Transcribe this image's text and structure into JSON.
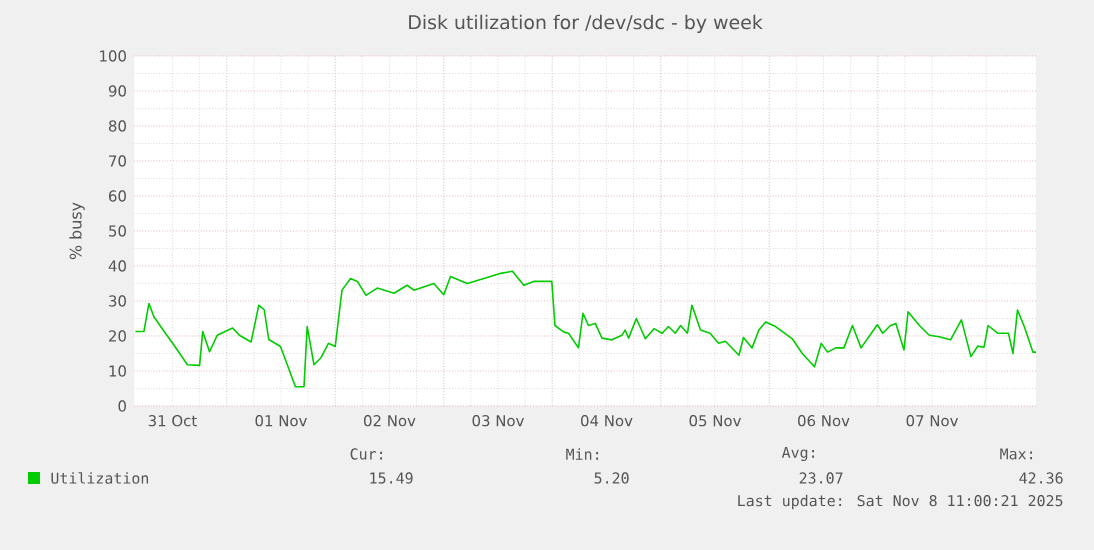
{
  "chart_data": {
    "type": "line",
    "title": "Disk utilization for /dev/sdc - by week",
    "ylabel": "% busy",
    "x": [
      "2025-10-31T03:48",
      "2025-10-31T05:42",
      "2025-10-31T06:48",
      "2025-10-31T07:54",
      "2025-10-31T10:12",
      "2025-10-31T12:24",
      "2025-10-31T15:18",
      "2025-10-31T18:00",
      "2025-10-31T18:42",
      "2025-10-31T20:12",
      "2025-10-31T21:54",
      "2025-11-01T01:18",
      "2025-11-01T02:48",
      "2025-11-01T05:24",
      "2025-11-01T07:06",
      "2025-11-01T08:18",
      "2025-11-01T09:18",
      "2025-11-01T11:54",
      "2025-11-01T13:24",
      "2025-11-01T15:12",
      "2025-11-01T17:06",
      "2025-11-01T17:48",
      "2025-11-01T19:18",
      "2025-11-01T20:48",
      "2025-11-01T22:30",
      "2025-11-02T00:00",
      "2025-11-02T01:30",
      "2025-11-02T03:24",
      "2025-11-02T04:54",
      "2025-11-02T06:48",
      "2025-11-02T09:18",
      "2025-11-02T13:00",
      "2025-11-02T15:54",
      "2025-11-02T17:24",
      "2025-11-02T21:48",
      "2025-11-03T00:00",
      "2025-11-03T01:30",
      "2025-11-03T05:12",
      "2025-11-03T08:54",
      "2025-11-03T12:36",
      "2025-11-03T15:12",
      "2025-11-03T17:42",
      "2025-11-03T19:54",
      "2025-11-03T23:54",
      "2025-11-04T00:36",
      "2025-11-04T02:36",
      "2025-11-04T03:36",
      "2025-11-04T05:48",
      "2025-11-04T06:48",
      "2025-11-04T08:00",
      "2025-11-04T09:30",
      "2025-11-04T11:00",
      "2025-11-04T13:12",
      "2025-11-04T15:24",
      "2025-11-04T16:06",
      "2025-11-04T16:54",
      "2025-11-04T18:36",
      "2025-11-04T20:36",
      "2025-11-04T22:30",
      "2025-11-05T00:18",
      "2025-11-05T01:42",
      "2025-11-05T03:12",
      "2025-11-05T04:24",
      "2025-11-05T05:54",
      "2025-11-05T06:54",
      "2025-11-05T08:48",
      "2025-11-05T10:54",
      "2025-11-05T12:48",
      "2025-11-05T14:18",
      "2025-11-05T17:18",
      "2025-11-05T18:18",
      "2025-11-05T20:12",
      "2025-11-05T21:42",
      "2025-11-05T23:12",
      "2025-11-06T01:24",
      "2025-11-06T05:06",
      "2025-11-06T07:18",
      "2025-11-06T10:00",
      "2025-11-06T11:30",
      "2025-11-06T12:54",
      "2025-11-06T14:42",
      "2025-11-06T16:30",
      "2025-11-06T18:24",
      "2025-11-06T20:18",
      "2025-11-06T23:54",
      "2025-11-07T01:06",
      "2025-11-07T02:48",
      "2025-11-07T04:00",
      "2025-11-07T05:48",
      "2025-11-07T06:42",
      "2025-11-07T09:12",
      "2025-11-07T11:24",
      "2025-11-07T13:36",
      "2025-11-07T16:06",
      "2025-11-07T18:30",
      "2025-11-07T20:36",
      "2025-11-07T22:06",
      "2025-11-07T23:30",
      "2025-11-08T00:24",
      "2025-11-08T02:30",
      "2025-11-08T04:54",
      "2025-11-08T05:54",
      "2025-11-08T06:54",
      "2025-11-08T08:24",
      "2025-11-08T10:18",
      "2025-11-08T11:00"
    ],
    "series": [
      {
        "name": "Utilization",
        "color": "#00cc00",
        "values": [
          21.3,
          21.3,
          29.3,
          25.5,
          21.2,
          17.3,
          11.8,
          11.6,
          21.3,
          15.5,
          20.2,
          22.3,
          20.2,
          18.3,
          28.8,
          27.5,
          19.0,
          17.0,
          11.8,
          5.5,
          5.5,
          22.7,
          11.8,
          13.7,
          17.9,
          17.0,
          33.1,
          36.4,
          35.6,
          31.6,
          33.7,
          32.2,
          34.5,
          33.1,
          35.0,
          31.8,
          37.0,
          35.0,
          36.4,
          37.9,
          38.5,
          34.5,
          35.6,
          35.6,
          23.0,
          21.1,
          20.8,
          16.6,
          26.5,
          23.0,
          23.6,
          19.4,
          18.9,
          20.2,
          21.7,
          19.4,
          25.0,
          19.2,
          22.1,
          20.8,
          22.7,
          20.8,
          23.0,
          20.8,
          28.8,
          21.7,
          20.8,
          17.9,
          18.5,
          14.5,
          19.6,
          16.6,
          21.7,
          24.0,
          22.7,
          19.2,
          15.0,
          11.2,
          17.9,
          15.4,
          16.6,
          16.6,
          23.0,
          16.6,
          23.2,
          20.8,
          23.0,
          23.6,
          16.0,
          26.9,
          23.0,
          20.2,
          19.8,
          18.9,
          24.6,
          14.1,
          17.1,
          16.8,
          23.0,
          20.8,
          20.8,
          15.0,
          27.4,
          22.7,
          15.4,
          15.4
        ]
      }
    ],
    "xlim": [
      "2025-10-31T03:30",
      "2025-11-08T11:00"
    ],
    "xticks": [
      {
        "value": "2025-10-31T12:00",
        "label": "31 Oct"
      },
      {
        "value": "2025-11-01T12:00",
        "label": "01 Nov"
      },
      {
        "value": "2025-11-02T12:00",
        "label": "02 Nov"
      },
      {
        "value": "2025-11-03T12:00",
        "label": "03 Nov"
      },
      {
        "value": "2025-11-04T12:00",
        "label": "04 Nov"
      },
      {
        "value": "2025-11-05T12:00",
        "label": "05 Nov"
      },
      {
        "value": "2025-11-06T12:00",
        "label": "06 Nov"
      },
      {
        "value": "2025-11-07T12:00",
        "label": "07 Nov"
      },
      {
        "value": "2025-11-01T00:00",
        "label": null
      },
      {
        "value": "2025-11-02T00:00",
        "label": null
      },
      {
        "value": "2025-11-03T00:00",
        "label": null
      },
      {
        "value": "2025-11-04T00:00",
        "label": null
      },
      {
        "value": "2025-11-05T00:00",
        "label": null
      },
      {
        "value": "2025-11-06T00:00",
        "label": null
      },
      {
        "value": "2025-11-07T00:00",
        "label": null
      },
      {
        "value": "2025-11-08T00:00",
        "label": null
      }
    ],
    "ylim": [
      0,
      100
    ],
    "yticks": [
      0,
      10,
      20,
      30,
      40,
      50,
      60,
      70,
      80,
      90,
      100
    ],
    "grid": true,
    "legend": "bottom",
    "marker": "none",
    "line_style": "solid",
    "annotations": [
      "Cur:",
      "Min:",
      "Avg:",
      "Max:",
      "15.49",
      "5.20",
      "23.07",
      "42.36",
      "Last update: Sat Nov  8 11:00:21 2025"
    ]
  }
}
